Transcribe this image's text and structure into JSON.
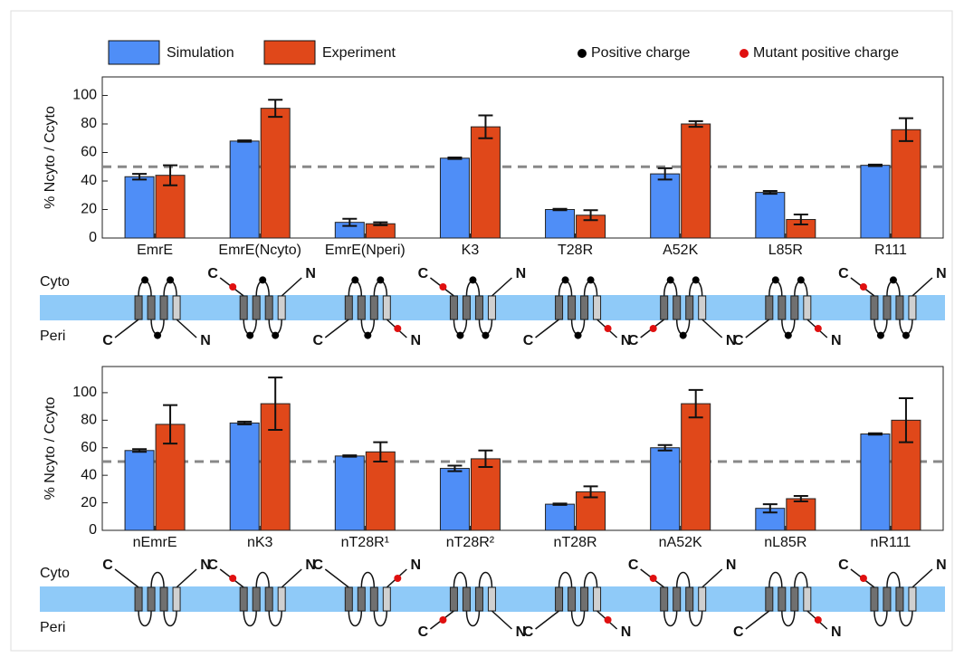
{
  "chart_data": [
    {
      "type": "bar",
      "ylabel": "% Ncyto / Ccyto",
      "categories": [
        "EmrE",
        "EmrE(Ncyto)",
        "EmrE(Nperi)",
        "K3",
        "T28R",
        "A52K",
        "L85R",
        "R111"
      ],
      "series": [
        {
          "name": "Simulation",
          "color": "#4f8ef7",
          "values": [
            43,
            68,
            11,
            56,
            20,
            45,
            32,
            51
          ],
          "errors": [
            2,
            0.5,
            2.5,
            0.5,
            0.5,
            4,
            1,
            0.5
          ]
        },
        {
          "name": "Experiment",
          "color": "#e0481a",
          "values": [
            44,
            91,
            10,
            78,
            16,
            80,
            13,
            76
          ],
          "errors": [
            7,
            6,
            1,
            8,
            3.5,
            2,
            3.5,
            8
          ]
        }
      ],
      "ylim": [
        0,
        113
      ],
      "yticks": [
        0,
        20,
        40,
        60,
        80,
        100
      ],
      "reference_line": 50
    },
    {
      "type": "bar",
      "ylabel": "% Ncyto / Ccyto",
      "categories": [
        "nEmrE",
        "nK3",
        "nT28R¹",
        "nT28R²",
        "nT28R",
        "nA52K",
        "nL85R",
        "nR111"
      ],
      "series": [
        {
          "color": "#4f8ef7",
          "values": [
            58,
            78,
            54,
            45,
            19,
            60,
            16,
            70
          ],
          "errors": [
            1,
            1,
            0.5,
            2,
            0.5,
            2,
            3,
            0.5
          ]
        },
        {
          "color": "#e0481a",
          "values": [
            77,
            92,
            57,
            52,
            28,
            92,
            23,
            80
          ],
          "errors": [
            14,
            19,
            7,
            6,
            4,
            10,
            2,
            16
          ]
        }
      ],
      "ylim": [
        0,
        119
      ],
      "yticks": [
        0,
        20,
        40,
        60,
        80,
        100
      ],
      "reference_line": 50
    }
  ],
  "charge_legend": [
    {
      "label": "Positive charge",
      "color": "#000000"
    },
    {
      "label": "Mutant positive charge",
      "color": "#e01010"
    }
  ],
  "topology": {
    "cyto": "Cyto",
    "peri": "Peri",
    "c": "C",
    "n": "N"
  }
}
